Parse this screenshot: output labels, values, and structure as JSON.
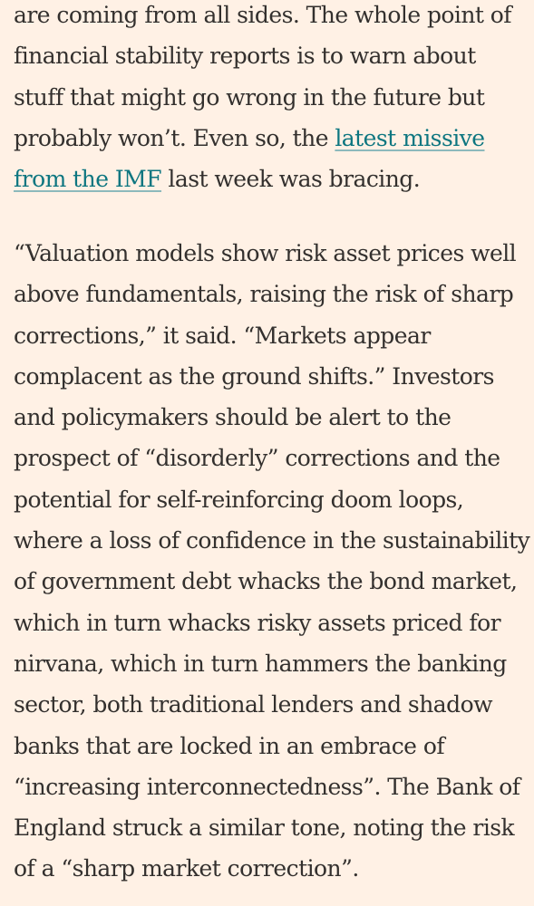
{
  "article": {
    "paragraph1": {
      "line1": "are coming from all sides. The whole point of",
      "line2": "financial stability reports is to warn about",
      "line3": "stuff that might go wrong in the future but",
      "line4_pre": "probably won’t. Even so, the ",
      "link_part1": "latest missive",
      "link_part2": "from the IMF",
      "line5_post": " last week was bracing."
    },
    "paragraph2": {
      "lines": [
        "“Valuation models show risk asset prices well",
        "above fundamentals, raising the risk of sharp",
        "corrections,” it said. “Markets appear",
        "complacent as the ground shifts.” Investors",
        "and policymakers should be alert to the",
        "prospect of “disorderly” corrections and the",
        "potential for self-reinforcing doom loops,",
        "where a loss of confidence in the sustainability",
        "of government debt whacks the bond market,",
        "which in turn whacks risky assets priced for",
        "nirvana, which in turn hammers the banking",
        "sector, both traditional lenders and shadow",
        "banks that are locked in an embrace of",
        "“increasing interconnectedness”. The Bank of",
        "England struck a similar tone, noting the risk",
        "of a “sharp market correction”."
      ]
    },
    "colors": {
      "background": "#fff1e5",
      "text": "#33302e",
      "link": "#0d7680"
    }
  }
}
